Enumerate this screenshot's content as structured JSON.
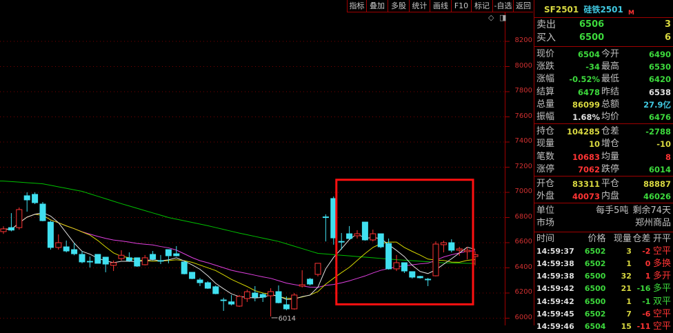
{
  "toolbar": [
    "指标",
    "叠加",
    "多股",
    "统计",
    "画线",
    "F10",
    "标记",
    "-自选",
    "返回"
  ],
  "chart_icons": {
    "diamond": "◇",
    "panel": "◨"
  },
  "y_axis": {
    "ticks": [
      8200,
      8000,
      7800,
      7600,
      7400,
      7200,
      7000,
      6800,
      6600,
      6400,
      6200,
      6000
    ],
    "range": [
      6000,
      8200
    ]
  },
  "low_marker": "6014",
  "colors": {
    "up": "#ff3434",
    "down": "#40e0f0",
    "ma5": "#e0e0e0",
    "ma10": "#d8d800",
    "ma20": "#e040e0",
    "ma60": "#00c000",
    "grid": "#800000",
    "highlight_box": "#ff1010"
  },
  "highlight_box": {
    "from_index": 42,
    "to_index": 60,
    "price_top": 7100,
    "price_bottom": 6110
  },
  "chart_data": {
    "type": "candlestick",
    "candles": [
      [
        6688,
        6710,
        6730,
        6670
      ],
      [
        6720,
        6700,
        6835,
        6690
      ],
      [
        6720,
        6863,
        6880,
        6704
      ],
      [
        6973,
        6940,
        7000,
        6847
      ],
      [
        6984,
        6918,
        7000,
        6907
      ],
      [
        6907,
        6775,
        6923,
        6770
      ],
      [
        6764,
        6562,
        6775,
        6545
      ],
      [
        6562,
        6600,
        6666,
        6545
      ],
      [
        6567,
        6534,
        6617,
        6523
      ],
      [
        6545,
        6512,
        6600,
        6500
      ],
      [
        6507,
        6447,
        6534,
        6436
      ],
      [
        6452,
        6452,
        6490,
        6403
      ],
      [
        6507,
        6436,
        6507,
        6436
      ],
      [
        6485,
        6430,
        6485,
        6365
      ],
      [
        6420,
        6441,
        6458,
        6375
      ],
      [
        6474,
        6500,
        6540,
        6458
      ],
      [
        6480,
        6458,
        6523,
        6447
      ],
      [
        6480,
        6414,
        6480,
        6408
      ],
      [
        6425,
        6480,
        6502,
        6420
      ],
      [
        6507,
        6470,
        6534,
        6458
      ],
      [
        6458,
        6458,
        6502,
        6430
      ],
      [
        6545,
        6496,
        6545,
        6436
      ],
      [
        6512,
        6496,
        6573,
        6490
      ],
      [
        6447,
        6353,
        6447,
        6348
      ],
      [
        6365,
        6315,
        6365,
        6310
      ],
      [
        6304,
        6282,
        6320,
        6255
      ],
      [
        6282,
        6238,
        6293,
        6233
      ],
      [
        6250,
        6195,
        6260,
        6190
      ],
      [
        6145,
        6140,
        6162,
        6058
      ],
      [
        6130,
        6112,
        6184,
        6101
      ],
      [
        6096,
        6173,
        6184,
        6090
      ],
      [
        6156,
        6210,
        6227,
        6129
      ],
      [
        6200,
        6167,
        6255,
        6134
      ],
      [
        6189,
        6167,
        6200,
        6129
      ],
      [
        6178,
        6211,
        6238,
        6014
      ],
      [
        6211,
        6123,
        6260,
        6118
      ],
      [
        6107,
        6074,
        6173,
        6063
      ],
      [
        6074,
        6184,
        6200,
        6068
      ],
      [
        6255,
        6266,
        6381,
        6244
      ],
      [
        6310,
        6271,
        6320,
        6260
      ],
      [
        6348,
        6436,
        6436,
        6332
      ],
      [
        6805,
        6805,
        6825,
        6610
      ],
      [
        6951,
        6638,
        6967,
        6584
      ],
      [
        6610,
        6610,
        6677,
        6545
      ],
      [
        6671,
        6633,
        6732,
        6627
      ],
      [
        6655,
        6671,
        6699,
        6633
      ],
      [
        6764,
        6622,
        6764,
        6616
      ],
      [
        6622,
        6671,
        6704,
        6610
      ],
      [
        6671,
        6567,
        6671,
        6556
      ],
      [
        6594,
        6392,
        6633,
        6386
      ],
      [
        6392,
        6441,
        6502,
        6375
      ],
      [
        6441,
        6375,
        6441,
        6359
      ],
      [
        6370,
        6326,
        6370,
        6315
      ],
      [
        6332,
        6321,
        6337,
        6315
      ],
      [
        6310,
        6310,
        6320,
        6255
      ],
      [
        6337,
        6589,
        6610,
        6332
      ],
      [
        6584,
        6600,
        6616,
        6523
      ],
      [
        6600,
        6540,
        6627,
        6523
      ],
      [
        6540,
        6551,
        6567,
        6496
      ],
      [
        6529,
        6540,
        6567,
        6468
      ],
      [
        6490,
        6504,
        6530,
        6420
      ]
    ],
    "candle_fields": [
      "open",
      "close",
      "high",
      "low"
    ],
    "ma60_anchors": [
      [
        0,
        7090
      ],
      [
        5,
        7068
      ],
      [
        10,
        7008
      ],
      [
        15,
        6910
      ],
      [
        21,
        6800
      ],
      [
        26,
        6735
      ],
      [
        30,
        6676
      ],
      [
        35,
        6610
      ],
      [
        40,
        6515
      ],
      [
        45,
        6490
      ],
      [
        50,
        6465
      ],
      [
        56,
        6440
      ],
      [
        60,
        6435
      ]
    ]
  },
  "panel": {
    "code": "SF2501",
    "name": "硅铁2501",
    "badge": "M",
    "sell": {
      "label": "卖出",
      "price": "6506",
      "vol": "3"
    },
    "buy": {
      "label": "买入",
      "price": "6500",
      "vol": "6"
    },
    "stats1": [
      {
        "l1": "现价",
        "v1": "6504",
        "c1": "g",
        "l2": "今开",
        "v2": "6490",
        "c2": "g"
      },
      {
        "l1": "涨跌",
        "v1": "-34",
        "c1": "g",
        "l2": "最高",
        "v2": "6530",
        "c2": "g"
      },
      {
        "l1": "涨幅",
        "v1": "-0.52%",
        "c1": "g",
        "l2": "最低",
        "v2": "6420",
        "c2": "g"
      },
      {
        "l1": "结算",
        "v1": "6478",
        "c1": "g",
        "l2": "昨结",
        "v2": "6538",
        "c2": "w"
      },
      {
        "l1": "总量",
        "v1": "86099",
        "c1": "y",
        "l2": "总额",
        "v2": "27.9亿",
        "c2": "c"
      },
      {
        "l1": "振幅",
        "v1": "1.68%",
        "c1": "w",
        "l2": "均价",
        "v2": "6476",
        "c2": "g"
      }
    ],
    "stats2": [
      {
        "l1": "持仓",
        "v1": "104285",
        "c1": "y",
        "l2": "仓差",
        "v2": "-2788",
        "c2": "g"
      },
      {
        "l1": "现量",
        "v1": "10",
        "c1": "y",
        "l2": "增仓",
        "v2": "-10",
        "c2": "y"
      },
      {
        "l1": "笔数",
        "v1": "10683",
        "c1": "r",
        "l2": "均量",
        "v2": "8",
        "c2": "r"
      },
      {
        "l1": "涨停",
        "v1": "7062",
        "c1": "r",
        "l2": "跌停",
        "v2": "6014",
        "c2": "g"
      }
    ],
    "stats3": [
      {
        "l1": "开仓",
        "v1": "83311",
        "c1": "y",
        "l2": "平仓",
        "v2": "88887",
        "c2": "y"
      },
      {
        "l1": "外盘",
        "v1": "40073",
        "c1": "r",
        "l2": "内盘",
        "v2": "46026",
        "c2": "g"
      }
    ],
    "unit": {
      "label": "单位",
      "value": "每手5吨",
      "remain": "剩余74天"
    },
    "market": {
      "label": "市场",
      "value": "郑州商品"
    },
    "trades_header": [
      "时间",
      "价格",
      "现量",
      "仓差",
      "开平"
    ],
    "trades": [
      [
        "14:59:37",
        "6502",
        "3",
        "-2",
        "空平",
        "r",
        "r"
      ],
      [
        "14:59:38",
        "6502",
        "1",
        "0",
        "多换",
        "r",
        "r"
      ],
      [
        "14:59:38",
        "6500",
        "32",
        "1",
        "多开",
        "r",
        "r"
      ],
      [
        "14:59:42",
        "6500",
        "21",
        "-16",
        "多平",
        "g",
        "g"
      ],
      [
        "14:59:42",
        "6500",
        "1",
        "-1",
        "双平",
        "g",
        "g"
      ],
      [
        "14:59:45",
        "6502",
        "7",
        "-6",
        "空平",
        "r",
        "r"
      ],
      [
        "14:59:46",
        "6504",
        "15",
        "-11",
        "空平",
        "r",
        "r"
      ]
    ]
  }
}
